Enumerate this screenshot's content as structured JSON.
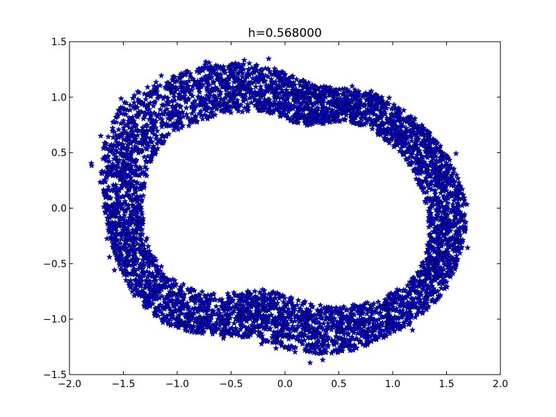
{
  "chart_data": {
    "type": "scatter",
    "title": "h=0.568000",
    "xlabel": "",
    "ylabel": "",
    "xlim": [
      -2.0,
      2.0
    ],
    "ylim": [
      -1.5,
      1.5
    ],
    "xticks": [
      -2.0,
      -1.5,
      -1.0,
      -0.5,
      0.0,
      0.5,
      1.0,
      1.5,
      2.0
    ],
    "xtick_labels": [
      "−2.0",
      "−1.5",
      "−1.0",
      "−0.5",
      "0.0",
      "0.5",
      "1.0",
      "1.5",
      "2.0"
    ],
    "yticks": [
      1.5,
      1.0,
      0.5,
      0.0,
      -0.5,
      -1.0,
      -1.5
    ],
    "ytick_labels": [
      "1.5",
      "1.0",
      "0.5",
      "0.0",
      "−0.5",
      "−1.0",
      "−1.5"
    ],
    "grid": false,
    "legend": "none",
    "marker": "star",
    "marker_face_color": "#0000ff",
    "marker_edge_color": "#000000",
    "series": [
      {
        "points_description_note": "",
        "ring": {
          "center": [
            0.0,
            0.0
          ],
          "outer_x": [
            -1.72,
            -1.7,
            -1.62,
            -1.55,
            -1.45,
            -1.3,
            -1.15,
            -1.0,
            -0.85,
            -0.7,
            -0.55,
            -0.4,
            -0.25,
            -0.1,
            0.05,
            0.2,
            0.35,
            0.5,
            0.65,
            0.8,
            0.95,
            1.1,
            1.25,
            1.4,
            1.52,
            1.62,
            1.68,
            1.68,
            1.64,
            1.58,
            1.5,
            1.4,
            1.28,
            1.15,
            1.0,
            0.85,
            0.7,
            0.55,
            0.4,
            0.25,
            0.1,
            -0.05,
            -0.2,
            -0.35,
            -0.5,
            -0.65,
            -0.8,
            -0.95,
            -1.1,
            -1.25,
            -1.38,
            -1.5,
            -1.6,
            -1.67
          ],
          "outer_y": [
            0.3,
            0.5,
            0.75,
            0.9,
            1.0,
            1.08,
            1.14,
            1.2,
            1.25,
            1.28,
            1.3,
            1.31,
            1.3,
            1.26,
            1.2,
            1.14,
            1.1,
            1.08,
            1.07,
            1.04,
            0.98,
            0.9,
            0.78,
            0.62,
            0.45,
            0.25,
            0.05,
            -0.15,
            -0.35,
            -0.55,
            -0.72,
            -0.85,
            -0.95,
            -1.05,
            -1.13,
            -1.2,
            -1.26,
            -1.3,
            -1.32,
            -1.31,
            -1.28,
            -1.24,
            -1.2,
            -1.17,
            -1.15,
            -1.14,
            -1.13,
            -1.1,
            -1.05,
            -0.95,
            -0.82,
            -0.62,
            -0.35,
            -0.05
          ],
          "inner_x": [
            -1.32,
            -1.3,
            -1.25,
            -1.15,
            -1.0,
            -0.85,
            -0.7,
            -0.55,
            -0.4,
            -0.25,
            -0.1,
            0.05,
            0.2,
            0.35,
            0.5,
            0.65,
            0.8,
            0.95,
            1.1,
            1.22,
            1.3,
            1.33,
            1.33,
            1.3,
            1.25,
            1.15,
            1.0,
            0.85,
            0.7,
            0.55,
            0.4,
            0.25,
            0.1,
            -0.05,
            -0.2,
            -0.35,
            -0.5,
            -0.65,
            -0.8,
            -0.95,
            -1.1,
            -1.22,
            -1.3
          ],
          "inner_y": [
            0.0,
            0.2,
            0.4,
            0.56,
            0.68,
            0.75,
            0.8,
            0.84,
            0.86,
            0.86,
            0.84,
            0.78,
            0.74,
            0.76,
            0.77,
            0.76,
            0.7,
            0.6,
            0.45,
            0.25,
            0.05,
            -0.1,
            -0.25,
            -0.4,
            -0.55,
            -0.66,
            -0.75,
            -0.82,
            -0.86,
            -0.88,
            -0.88,
            -0.85,
            -0.8,
            -0.76,
            -0.73,
            -0.74,
            -0.76,
            -0.76,
            -0.74,
            -0.68,
            -0.58,
            -0.42,
            -0.2
          ]
        },
        "point_count_estimate": 5000
      }
    ]
  }
}
